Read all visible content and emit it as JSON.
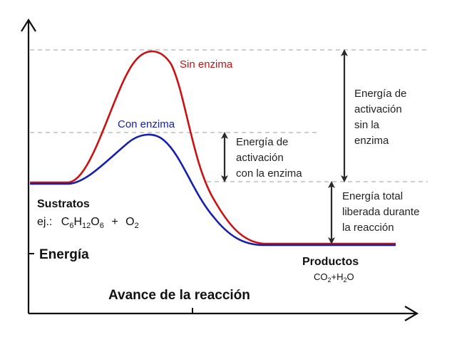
{
  "colors": {
    "axis": "#111111",
    "guide": "#bdbdbd",
    "arrow": "#2a2a2a",
    "no_enzyme": "#cc1111",
    "with_enzyme": "#1420b0",
    "text": "#222222"
  },
  "curves": {
    "no_enzyme_label": "Sin enzima",
    "with_enzyme_label": "Con enzima"
  },
  "annotations": {
    "activation_without": [
      "Energía de",
      "activación",
      "sin la",
      "enzima"
    ],
    "activation_with": [
      "Energía de",
      "activación",
      "con la enzima"
    ],
    "total_released": [
      "Energía total",
      "liberada durante",
      "la reacción"
    ]
  },
  "substrates": {
    "title": "Sustratos",
    "example_prefix": "ej.:",
    "formula": {
      "c": "C",
      "c_sub": "6",
      "h": "H",
      "h_sub": "12",
      "o": "O",
      "o_sub": "6",
      "plus": "+",
      "o2": "O",
      "o2_sub": "2"
    }
  },
  "products": {
    "title": "Productos",
    "formula": {
      "co": "CO",
      "co_sub": "2",
      "plus": "+",
      "h": "H",
      "h_sub": "2",
      "o": "O"
    }
  },
  "axes": {
    "y_label": "Energía",
    "x_label": "Avance de la reacción"
  }
}
